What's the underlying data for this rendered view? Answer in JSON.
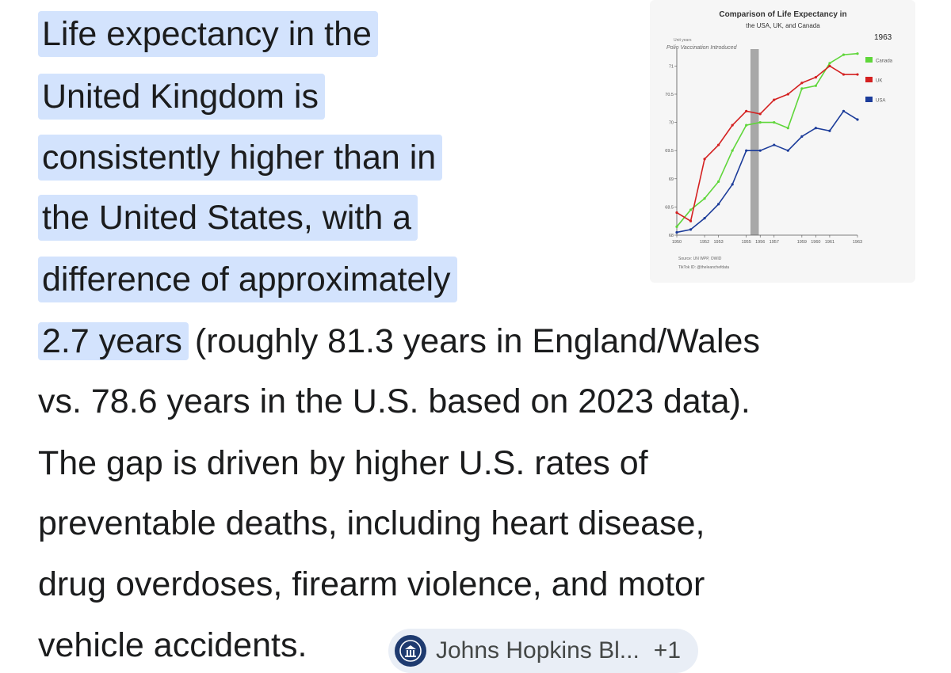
{
  "answer": {
    "highlight_lines": [
      "Life expectancy in the",
      "United Kingdom is",
      "consistently higher than in",
      "the United States, with a",
      "difference of approximately"
    ],
    "highlight_tail": "2.7 years",
    "line6_rest": "(roughly 81.3 years in England/Wales",
    "lines": [
      "vs. 78.6 years in the U.S. based on 2023 data).",
      "The gap is driven by higher U.S. rates of",
      "preventable deaths, including heart disease,",
      "drug overdoses, firearm violence, and motor"
    ],
    "last_line": "vehicle accidents."
  },
  "source_chip": {
    "icon": "university-seal-icon",
    "label": "Johns Hopkins Bl...",
    "more": "+1"
  },
  "chart_data": {
    "type": "line",
    "title": "Comparison of Life Expectancy in",
    "subtitle": "the USA, UK, and Canada",
    "year_label": "1963",
    "ylabel": "Unit years",
    "annotation": "Polio Vaccination Introduced",
    "source": "Source: UN WPP, OWID",
    "credit": "TikTok ID: @theleanchefdata",
    "x_ticks": [
      "1950",
      "1952",
      "1953",
      "1955",
      "1956",
      "1957",
      "1959",
      "1960",
      "1961",
      "1963"
    ],
    "y_ticks": [
      "68",
      "68.5",
      "69",
      "69.5",
      "70",
      "70.5",
      "71"
    ],
    "xlim": [
      1950,
      1963
    ],
    "ylim": [
      68,
      71.3
    ],
    "band": [
      1955.3,
      1955.9
    ],
    "colors": {
      "Canada": "#5fd63a",
      "UK": "#d42020",
      "USA": "#1c3c9a"
    },
    "series": [
      {
        "name": "Canada",
        "x": [
          1950,
          1951,
          1952,
          1953,
          1954,
          1955,
          1956,
          1957,
          1958,
          1959,
          1960,
          1961,
          1962,
          1963
        ],
        "y": [
          68.15,
          68.45,
          68.65,
          68.95,
          69.5,
          69.95,
          70.0,
          70.0,
          69.9,
          70.6,
          70.65,
          71.05,
          71.2,
          71.22
        ]
      },
      {
        "name": "UK",
        "x": [
          1950,
          1951,
          1952,
          1953,
          1954,
          1955,
          1956,
          1957,
          1958,
          1959,
          1960,
          1961,
          1962,
          1963
        ],
        "y": [
          68.4,
          68.25,
          69.35,
          69.6,
          69.95,
          70.2,
          70.15,
          70.4,
          70.5,
          70.7,
          70.8,
          71.0,
          70.85,
          70.85
        ]
      },
      {
        "name": "USA",
        "x": [
          1950,
          1951,
          1952,
          1953,
          1954,
          1955,
          1956,
          1957,
          1958,
          1959,
          1960,
          1961,
          1962,
          1963
        ],
        "y": [
          68.05,
          68.1,
          68.3,
          68.55,
          68.9,
          69.5,
          69.5,
          69.6,
          69.5,
          69.75,
          69.9,
          69.85,
          70.2,
          70.05
        ]
      }
    ]
  }
}
